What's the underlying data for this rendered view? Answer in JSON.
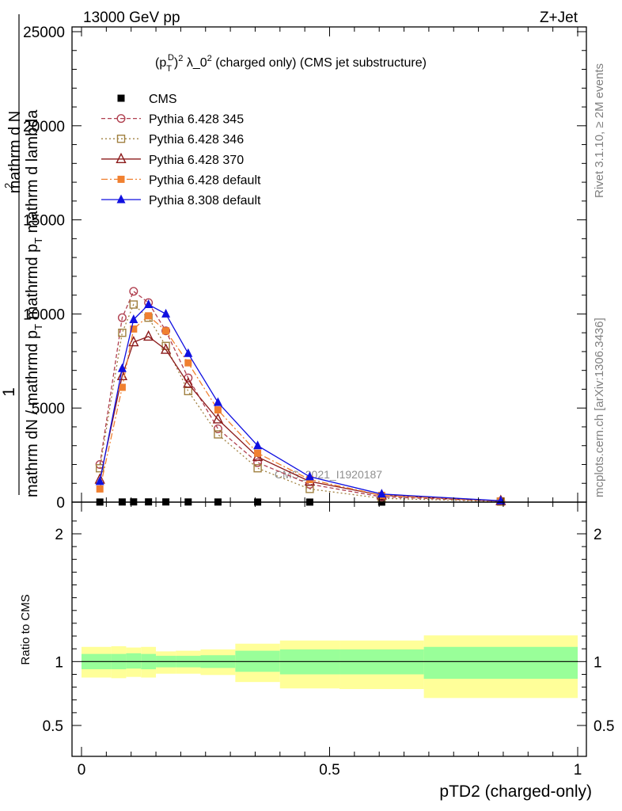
{
  "header": {
    "energy_label": "13000 GeV pp",
    "process_label": "Z+Jet"
  },
  "side_labels": {
    "rivet": "Rivet 3.1.10, ≥ 2M events",
    "mcplots": "mcplots.cern.ch [arXiv:1306.3436]"
  },
  "chart_data": [
    {
      "type": "line",
      "panel": "main",
      "title_parts": [
        "(p",
        "T",
        "D",
        ")",
        "2",
        " λ_0",
        "2",
        " (charged only) (CMS jet substructure)"
      ],
      "ylabel_parts": [
        "1",
        "mathrm dN / mathrmd p",
        "T",
        "mathrmd p",
        "T",
        "mathrm d lambda",
        "mathrm d",
        "2",
        "N"
      ],
      "watermark": "CMS_2021_I1920187",
      "ylim": [
        0,
        25000
      ],
      "yticks": [
        0,
        5000,
        10000,
        15000,
        20000,
        25000
      ],
      "ytick_labels": [
        "0",
        "5000",
        "10000",
        "15000",
        "20000",
        "25000"
      ],
      "xlim": [
        0,
        1
      ],
      "x": [
        0.037,
        0.082,
        0.105,
        0.135,
        0.17,
        0.215,
        0.275,
        0.355,
        0.46,
        0.605,
        0.845
      ],
      "series": [
        {
          "name": "CMS",
          "color": "#000000",
          "marker": "square-filled",
          "values": [
            4,
            8,
            12,
            12,
            10,
            8,
            6,
            4,
            2,
            1,
            0.5
          ]
        },
        {
          "name": "Pythia 6.428 345",
          "color": "#b04050",
          "dash": "5,3",
          "marker": "circle-open",
          "values": [
            2000,
            9800,
            11200,
            10600,
            9100,
            6600,
            3900,
            2100,
            950,
            280,
            50
          ]
        },
        {
          "name": "Pythia 6.428 346",
          "color": "#a08040",
          "dash": "2,3",
          "marker": "square-open",
          "values": [
            1800,
            9000,
            10500,
            9800,
            8300,
            5900,
            3600,
            1800,
            700,
            200,
            30
          ]
        },
        {
          "name": "Pythia 6.428 370",
          "color": "#8b1a1a",
          "dash": "",
          "marker": "triangle-open",
          "values": [
            1200,
            6700,
            8500,
            8800,
            8100,
            6300,
            4400,
            2400,
            1100,
            360,
            60
          ]
        },
        {
          "name": "Pythia 6.428 default",
          "color": "#f08030",
          "dash": "8,3,2,3",
          "marker": "square-filled",
          "values": [
            700,
            6100,
            9200,
            9900,
            9100,
            7400,
            4900,
            2600,
            1200,
            360,
            60
          ]
        },
        {
          "name": "Pythia 8.308 default",
          "color": "#1010e0",
          "dash": "",
          "marker": "triangle-filled",
          "values": [
            1100,
            7100,
            9700,
            10500,
            10000,
            7900,
            5300,
            3000,
            1350,
            430,
            70
          ]
        }
      ]
    },
    {
      "type": "area",
      "panel": "ratio",
      "ylabel": "Ratio to CMS",
      "ylim": [
        0.5,
        2.2
      ],
      "yticks": [
        0.5,
        1,
        2
      ],
      "ytick_labels": [
        "0.5",
        "1",
        "2"
      ],
      "xlim": [
        0,
        1
      ],
      "xticks": [
        0,
        0.5,
        1
      ],
      "xtick_labels": [
        "0",
        "0.5",
        "1"
      ],
      "xlabel": "pTD2 (charged-only)",
      "bin_edges": [
        0,
        0.06,
        0.09,
        0.12,
        0.15,
        0.19,
        0.24,
        0.31,
        0.4,
        0.52,
        0.69,
        1.0
      ],
      "band_outer": {
        "color": "#ffff99",
        "lo": [
          0.875,
          0.87,
          0.88,
          0.875,
          0.905,
          0.905,
          0.895,
          0.84,
          0.79,
          0.785,
          0.715
        ],
        "hi": [
          1.115,
          1.12,
          1.11,
          1.115,
          1.08,
          1.085,
          1.095,
          1.14,
          1.165,
          1.165,
          1.205
        ]
      },
      "band_inner": {
        "color": "#99ff99",
        "lo": [
          0.94,
          0.94,
          0.945,
          0.94,
          0.955,
          0.955,
          0.95,
          0.92,
          0.9,
          0.9,
          0.865
        ],
        "hi": [
          1.06,
          1.06,
          1.065,
          1.06,
          1.045,
          1.045,
          1.05,
          1.085,
          1.095,
          1.095,
          1.115
        ]
      },
      "reference": 1
    }
  ]
}
